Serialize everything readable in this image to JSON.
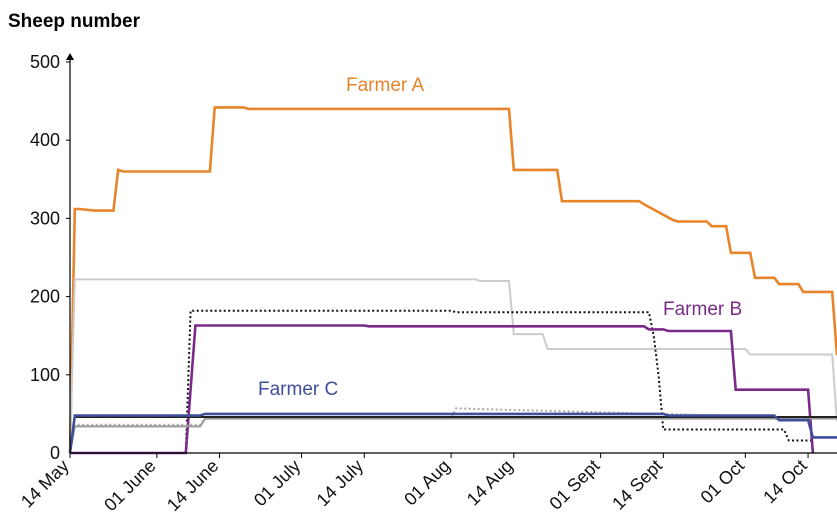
{
  "chart_data": {
    "type": "line",
    "ylabel": "Sheep number",
    "ylim": [
      0,
      500
    ],
    "yticks": [
      "0",
      "100",
      "200",
      "300",
      "400",
      "500"
    ],
    "xlim": [
      "2000-05-14",
      "2000-10-20"
    ],
    "xticks": [
      {
        "label": "14 May",
        "date": "2000-05-14"
      },
      {
        "label": "01 June",
        "date": "2000-06-01"
      },
      {
        "label": "14 June",
        "date": "2000-06-14"
      },
      {
        "label": "01 July",
        "date": "2000-07-01"
      },
      {
        "label": "14 July",
        "date": "2000-07-14"
      },
      {
        "label": "01 Aug",
        "date": "2000-08-01"
      },
      {
        "label": "14 Aug",
        "date": "2000-08-14"
      },
      {
        "label": "01 Sept",
        "date": "2000-09-01"
      },
      {
        "label": "14 Sept",
        "date": "2000-09-14"
      },
      {
        "label": "01 Oct",
        "date": "2000-10-01"
      },
      {
        "label": "14 Oct",
        "date": "2000-10-14"
      }
    ],
    "grid": false,
    "annotations": [
      {
        "text": "Farmer A",
        "color": "#e8842a"
      },
      {
        "text": "Farmer B",
        "color": "#7b2a8a"
      },
      {
        "text": "Farmer C",
        "color": "#3f4f9c"
      }
    ],
    "series": [
      {
        "name": "Farmer A",
        "color": "#e8842a",
        "style": "solid",
        "x": [
          "2000-05-14",
          "2000-05-15",
          "2000-05-16",
          "2000-05-19",
          "2000-05-20",
          "2000-05-22",
          "2000-05-23",
          "2000-05-24",
          "2000-05-25",
          "2000-06-10",
          "2000-06-11",
          "2000-06-12",
          "2000-06-13",
          "2000-06-19",
          "2000-06-20",
          "2000-08-13",
          "2000-08-14",
          "2000-08-23",
          "2000-08-24",
          "2000-09-09",
          "2000-09-10",
          "2000-09-16",
          "2000-09-17",
          "2000-09-23",
          "2000-09-24",
          "2000-09-27",
          "2000-09-28",
          "2000-10-02",
          "2000-10-03",
          "2000-10-07",
          "2000-10-08",
          "2000-10-12",
          "2000-10-13",
          "2000-10-19",
          "2000-10-20"
        ],
        "y": [
          0,
          312,
          312,
          310,
          310,
          310,
          310,
          362,
          360,
          360,
          360,
          360,
          442,
          442,
          440,
          440,
          362,
          362,
          322,
          322,
          318,
          298,
          296,
          296,
          290,
          290,
          256,
          256,
          224,
          224,
          216,
          216,
          206,
          206,
          125
        ]
      },
      {
        "name": "",
        "color": "#cccccc",
        "style": "solid",
        "x": [
          "2000-05-14",
          "2000-05-15",
          "2000-05-16",
          "2000-08-06",
          "2000-08-07",
          "2000-08-13",
          "2000-08-14",
          "2000-08-20",
          "2000-08-21",
          "2000-10-01",
          "2000-10-02",
          "2000-10-19",
          "2000-10-20"
        ],
        "y": [
          0,
          222,
          222,
          222,
          220,
          220,
          152,
          152,
          133,
          133,
          126,
          126,
          40
        ]
      },
      {
        "name": "",
        "color": "#111111",
        "style": "dotted",
        "x": [
          "2000-06-07",
          "2000-06-08",
          "2000-08-01",
          "2000-08-02",
          "2000-09-11",
          "2000-09-12",
          "2000-09-13",
          "2000-09-14",
          "2000-09-15",
          "2000-10-09",
          "2000-10-10",
          "2000-10-14",
          "2000-10-15"
        ],
        "y": [
          0,
          182,
          182,
          180,
          180,
          150,
          100,
          30,
          30,
          30,
          16,
          16,
          16
        ]
      },
      {
        "name": "Farmer B",
        "color": "#7b2a8a",
        "style": "solid",
        "x": [
          "2000-05-14",
          "2000-06-07",
          "2000-06-09",
          "2000-07-14",
          "2000-07-15",
          "2000-09-10",
          "2000-09-11",
          "2000-09-14",
          "2000-09-15",
          "2000-09-28",
          "2000-09-29",
          "2000-10-14",
          "2000-10-15"
        ],
        "y": [
          0,
          0,
          163,
          163,
          162,
          162,
          158,
          158,
          156,
          156,
          81,
          81,
          0
        ]
      },
      {
        "name": "",
        "color": "#aaaaaa",
        "style": "dotted",
        "x": [
          "2000-05-14",
          "2000-05-15",
          "2000-06-10",
          "2000-06-11",
          "2000-08-01",
          "2000-08-02",
          "2000-10-20"
        ],
        "y": [
          0,
          36,
          36,
          44,
          44,
          57,
          44
        ]
      },
      {
        "name": "",
        "color": "#999999",
        "style": "solid",
        "x": [
          "2000-05-14",
          "2000-05-15",
          "2000-06-10",
          "2000-06-11",
          "2000-10-20"
        ],
        "y": [
          0,
          34,
          34,
          44,
          44
        ]
      },
      {
        "name": "",
        "color": "#222222",
        "style": "solid",
        "x": [
          "2000-05-14",
          "2000-05-15",
          "2000-10-20"
        ],
        "y": [
          0,
          46,
          46
        ]
      },
      {
        "name": "Farmer C",
        "color": "#3f4f9c",
        "style": "solid",
        "x": [
          "2000-05-14",
          "2000-05-15",
          "2000-06-10",
          "2000-06-11",
          "2000-09-14",
          "2000-09-15",
          "2000-10-07",
          "2000-10-08",
          "2000-10-14",
          "2000-10-15",
          "2000-10-20"
        ],
        "y": [
          0,
          48,
          48,
          50,
          50,
          48,
          48,
          42,
          42,
          20,
          20
        ]
      }
    ]
  }
}
